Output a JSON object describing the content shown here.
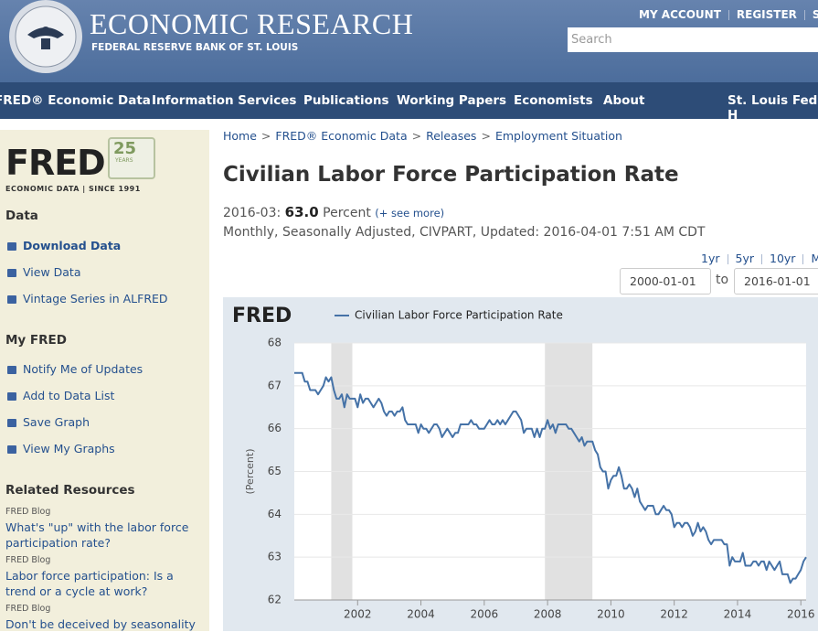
{
  "header": {
    "title": "ECONOMIC RESEARCH",
    "subtitle": "FEDERAL RESERVE BANK OF ST. LOUIS",
    "account_links": [
      "MY ACCOUNT",
      "REGISTER",
      "SIG"
    ],
    "search_placeholder": "Search"
  },
  "nav": [
    "FRED® Economic Data",
    "Information Services",
    "Publications",
    "Working Papers",
    "Economists",
    "About",
    "St. Louis Fed H"
  ],
  "sidebar": {
    "logo": "FRED",
    "badge_number": "25",
    "badge_text": "YEARS",
    "logo_tagline": "ECONOMIC DATA | SINCE 1991",
    "data_heading": "Data",
    "data_links": [
      "Download Data",
      "View Data",
      "Vintage Series in ALFRED"
    ],
    "myfred_heading": "My FRED",
    "myfred_links": [
      "Notify Me of Updates",
      "Add to Data List",
      "Save Graph",
      "View My Graphs"
    ],
    "related_heading": "Related Resources",
    "related": [
      {
        "source": "FRED Blog",
        "title": "What's \"up\" with the labor force participation rate?"
      },
      {
        "source": "FRED Blog",
        "title": "Labor force participation: Is a trend or a cycle at work?"
      },
      {
        "source": "FRED Blog",
        "title": "Don't be deceived by seasonality"
      }
    ]
  },
  "main": {
    "breadcrumb": [
      "Home",
      "FRED® Economic Data",
      "Releases",
      "Employment Situation"
    ],
    "breadcrumb_separator": ">",
    "title": "Civilian Labor Force Participation Rate",
    "latest_date": "2016-03:",
    "latest_value": "63.0",
    "units": "Percent",
    "see_more": "(+ see more)",
    "meta": "Monthly, Seasonally Adjusted, CIVPART, Updated: 2016-04-01 7:51 AM CDT",
    "ranges": [
      "1yr",
      "5yr",
      "10yr",
      "Ma"
    ],
    "start_date": "2000-01-01",
    "to": "to",
    "end_date": "2016-01-01"
  },
  "chart_data": {
    "type": "line",
    "logo": "FRED",
    "y_label": "(Percent)",
    "xlim": [
      "2000-01",
      "2016-03"
    ],
    "xticks": [
      2002,
      2004,
      2006,
      2008,
      2010,
      2012,
      2014,
      2016
    ],
    "ylim": [
      62,
      68
    ],
    "yticks": [
      62,
      63,
      64,
      65,
      66,
      67,
      68
    ],
    "grid": true,
    "recessions": [
      [
        "2001-03",
        "2001-11"
      ],
      [
        "2007-12",
        "2009-06"
      ]
    ],
    "x": [
      "2000-01",
      "2000-02",
      "2000-03",
      "2000-04",
      "2000-05",
      "2000-06",
      "2000-07",
      "2000-08",
      "2000-09",
      "2000-10",
      "2000-11",
      "2000-12",
      "2001-01",
      "2001-02",
      "2001-03",
      "2001-04",
      "2001-05",
      "2001-06",
      "2001-07",
      "2001-08",
      "2001-09",
      "2001-10",
      "2001-11",
      "2001-12",
      "2002-01",
      "2002-02",
      "2002-03",
      "2002-04",
      "2002-05",
      "2002-06",
      "2002-07",
      "2002-08",
      "2002-09",
      "2002-10",
      "2002-11",
      "2002-12",
      "2003-01",
      "2003-02",
      "2003-03",
      "2003-04",
      "2003-05",
      "2003-06",
      "2003-07",
      "2003-08",
      "2003-09",
      "2003-10",
      "2003-11",
      "2003-12",
      "2004-01",
      "2004-02",
      "2004-03",
      "2004-04",
      "2004-05",
      "2004-06",
      "2004-07",
      "2004-08",
      "2004-09",
      "2004-10",
      "2004-11",
      "2004-12",
      "2005-01",
      "2005-02",
      "2005-03",
      "2005-04",
      "2005-05",
      "2005-06",
      "2005-07",
      "2005-08",
      "2005-09",
      "2005-10",
      "2005-11",
      "2005-12",
      "2006-01",
      "2006-02",
      "2006-03",
      "2006-04",
      "2006-05",
      "2006-06",
      "2006-07",
      "2006-08",
      "2006-09",
      "2006-10",
      "2006-11",
      "2006-12",
      "2007-01",
      "2007-02",
      "2007-03",
      "2007-04",
      "2007-05",
      "2007-06",
      "2007-07",
      "2007-08",
      "2007-09",
      "2007-10",
      "2007-11",
      "2007-12",
      "2008-01",
      "2008-02",
      "2008-03",
      "2008-04",
      "2008-05",
      "2008-06",
      "2008-07",
      "2008-08",
      "2008-09",
      "2008-10",
      "2008-11",
      "2008-12",
      "2009-01",
      "2009-02",
      "2009-03",
      "2009-04",
      "2009-05",
      "2009-06",
      "2009-07",
      "2009-08",
      "2009-09",
      "2009-10",
      "2009-11",
      "2009-12",
      "2010-01",
      "2010-02",
      "2010-03",
      "2010-04",
      "2010-05",
      "2010-06",
      "2010-07",
      "2010-08",
      "2010-09",
      "2010-10",
      "2010-11",
      "2010-12",
      "2011-01",
      "2011-02",
      "2011-03",
      "2011-04",
      "2011-05",
      "2011-06",
      "2011-07",
      "2011-08",
      "2011-09",
      "2011-10",
      "2011-11",
      "2011-12",
      "2012-01",
      "2012-02",
      "2012-03",
      "2012-04",
      "2012-05",
      "2012-06",
      "2012-07",
      "2012-08",
      "2012-09",
      "2012-10",
      "2012-11",
      "2012-12",
      "2013-01",
      "2013-02",
      "2013-03",
      "2013-04",
      "2013-05",
      "2013-06",
      "2013-07",
      "2013-08",
      "2013-09",
      "2013-10",
      "2013-11",
      "2013-12",
      "2014-01",
      "2014-02",
      "2014-03",
      "2014-04",
      "2014-05",
      "2014-06",
      "2014-07",
      "2014-08",
      "2014-09",
      "2014-10",
      "2014-11",
      "2014-12",
      "2015-01",
      "2015-02",
      "2015-03",
      "2015-04",
      "2015-05",
      "2015-06",
      "2015-07",
      "2015-08",
      "2015-09",
      "2015-10",
      "2015-11",
      "2015-12",
      "2016-01",
      "2016-02",
      "2016-03"
    ],
    "series": [
      {
        "name": "Civilian Labor Force Participation Rate",
        "color": "#4572a7",
        "values": [
          67.3,
          67.3,
          67.3,
          67.3,
          67.1,
          67.1,
          66.9,
          66.9,
          66.9,
          66.8,
          66.9,
          67.0,
          67.2,
          67.1,
          67.2,
          66.9,
          66.7,
          66.7,
          66.8,
          66.5,
          66.8,
          66.7,
          66.7,
          66.7,
          66.5,
          66.8,
          66.6,
          66.7,
          66.7,
          66.6,
          66.5,
          66.6,
          66.7,
          66.6,
          66.4,
          66.3,
          66.4,
          66.4,
          66.3,
          66.4,
          66.4,
          66.5,
          66.2,
          66.1,
          66.1,
          66.1,
          66.1,
          65.9,
          66.1,
          66.0,
          66.0,
          65.9,
          66.0,
          66.1,
          66.1,
          66.0,
          65.8,
          65.9,
          66.0,
          65.9,
          65.8,
          65.9,
          65.9,
          66.1,
          66.1,
          66.1,
          66.1,
          66.2,
          66.1,
          66.1,
          66.0,
          66.0,
          66.0,
          66.1,
          66.2,
          66.1,
          66.1,
          66.2,
          66.1,
          66.2,
          66.1,
          66.2,
          66.3,
          66.4,
          66.4,
          66.3,
          66.2,
          65.9,
          66.0,
          66.0,
          66.0,
          65.8,
          66.0,
          65.8,
          66.0,
          66.0,
          66.2,
          66.0,
          66.1,
          65.9,
          66.1,
          66.1,
          66.1,
          66.1,
          66.0,
          66.0,
          65.9,
          65.8,
          65.7,
          65.8,
          65.6,
          65.7,
          65.7,
          65.7,
          65.5,
          65.4,
          65.1,
          65.0,
          65.0,
          64.6,
          64.8,
          64.9,
          64.9,
          65.1,
          64.9,
          64.6,
          64.6,
          64.7,
          64.6,
          64.4,
          64.6,
          64.3,
          64.2,
          64.1,
          64.2,
          64.2,
          64.2,
          64.0,
          64.0,
          64.1,
          64.2,
          64.1,
          64.1,
          64.0,
          63.7,
          63.8,
          63.8,
          63.7,
          63.8,
          63.8,
          63.7,
          63.5,
          63.6,
          63.8,
          63.6,
          63.7,
          63.6,
          63.4,
          63.3,
          63.4,
          63.4,
          63.4,
          63.4,
          63.3,
          63.3,
          62.8,
          63.0,
          62.9,
          62.9,
          62.9,
          63.1,
          62.8,
          62.8,
          62.8,
          62.9,
          62.9,
          62.8,
          62.9,
          62.9,
          62.7,
          62.9,
          62.8,
          62.7,
          62.8,
          62.9,
          62.6,
          62.6,
          62.6,
          62.4,
          62.5,
          62.5,
          62.6,
          62.7,
          62.9,
          63.0
        ]
      }
    ]
  }
}
